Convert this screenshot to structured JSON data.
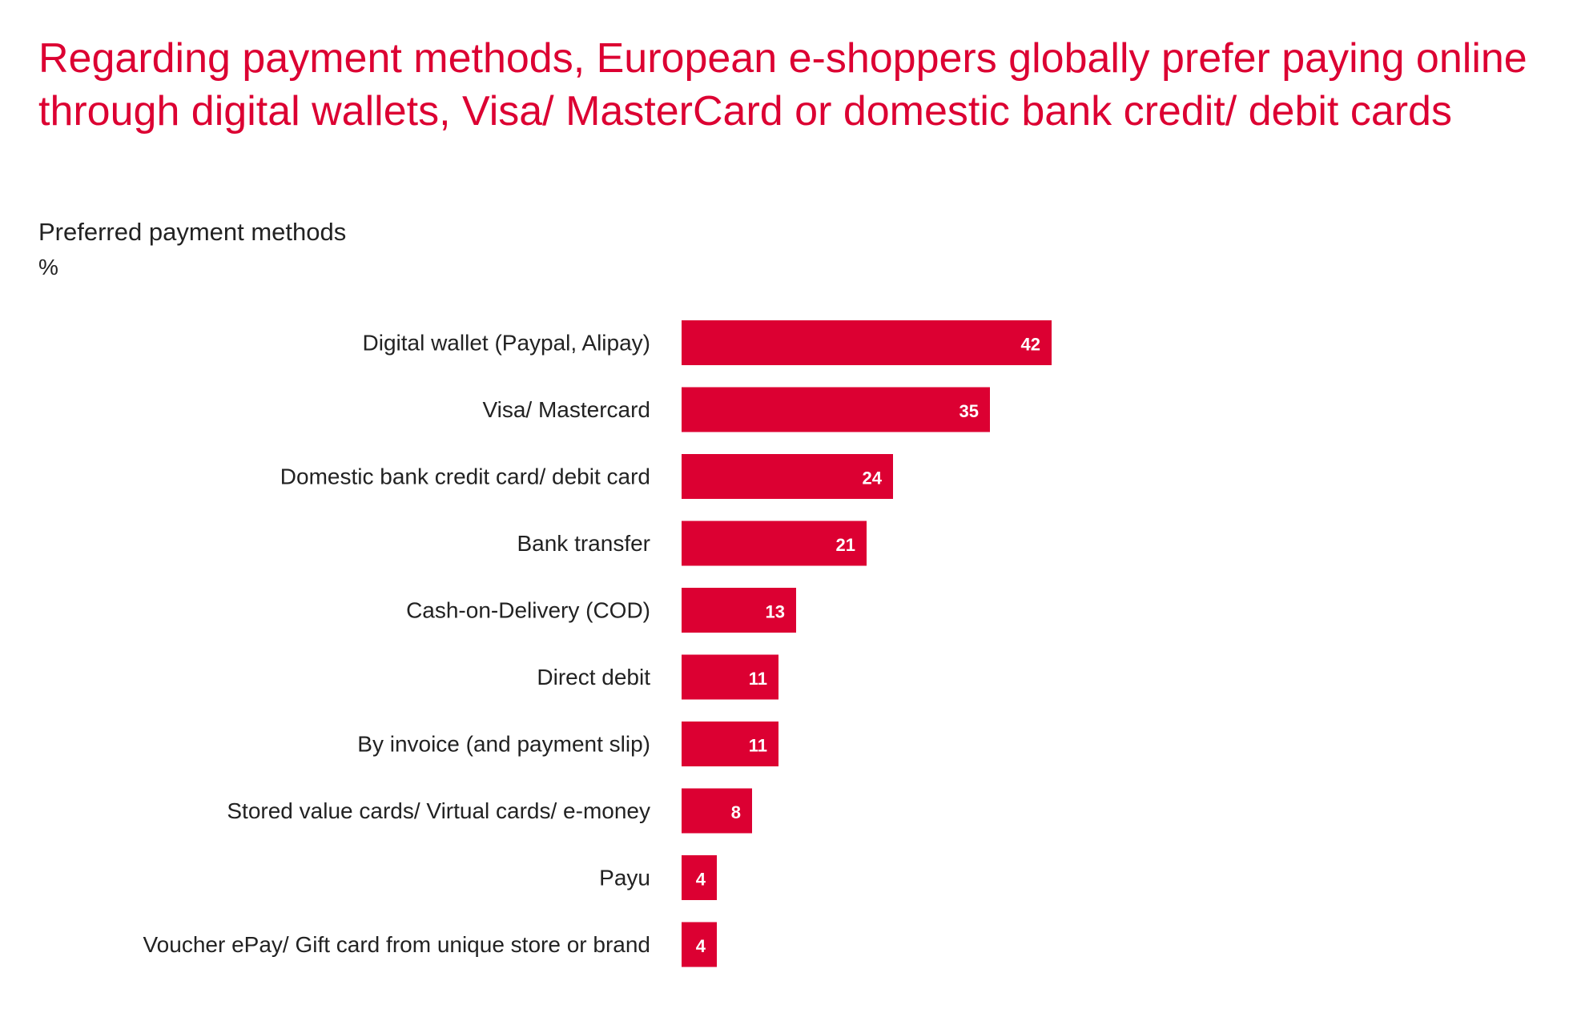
{
  "headline": "Regarding payment methods, European e-shoppers globally prefer paying online through digital wallets, Visa/ MasterCard or domestic bank credit/ debit cards",
  "colors": {
    "accent": "#dc0032",
    "text": "#222222",
    "value_label": "#ffffff"
  },
  "chart_data": {
    "type": "bar",
    "orientation": "horizontal",
    "title": "Preferred payment methods",
    "unit": "%",
    "xlabel": "",
    "ylabel": "",
    "grid": false,
    "legend": false,
    "xlim": [
      0,
      42
    ],
    "categories": [
      "Digital wallet (Paypal, Alipay)",
      "Visa/ Mastercard",
      "Domestic bank credit card/ debit card",
      "Bank transfer",
      "Cash-on-Delivery (COD)",
      "Direct debit",
      "By invoice (and payment slip)",
      "Stored value cards/ Virtual cards/ e-money",
      "Payu",
      "Voucher ePay/ Gift card from unique store or brand"
    ],
    "values": [
      42,
      35,
      24,
      21,
      13,
      11,
      11,
      8,
      4,
      4
    ]
  }
}
